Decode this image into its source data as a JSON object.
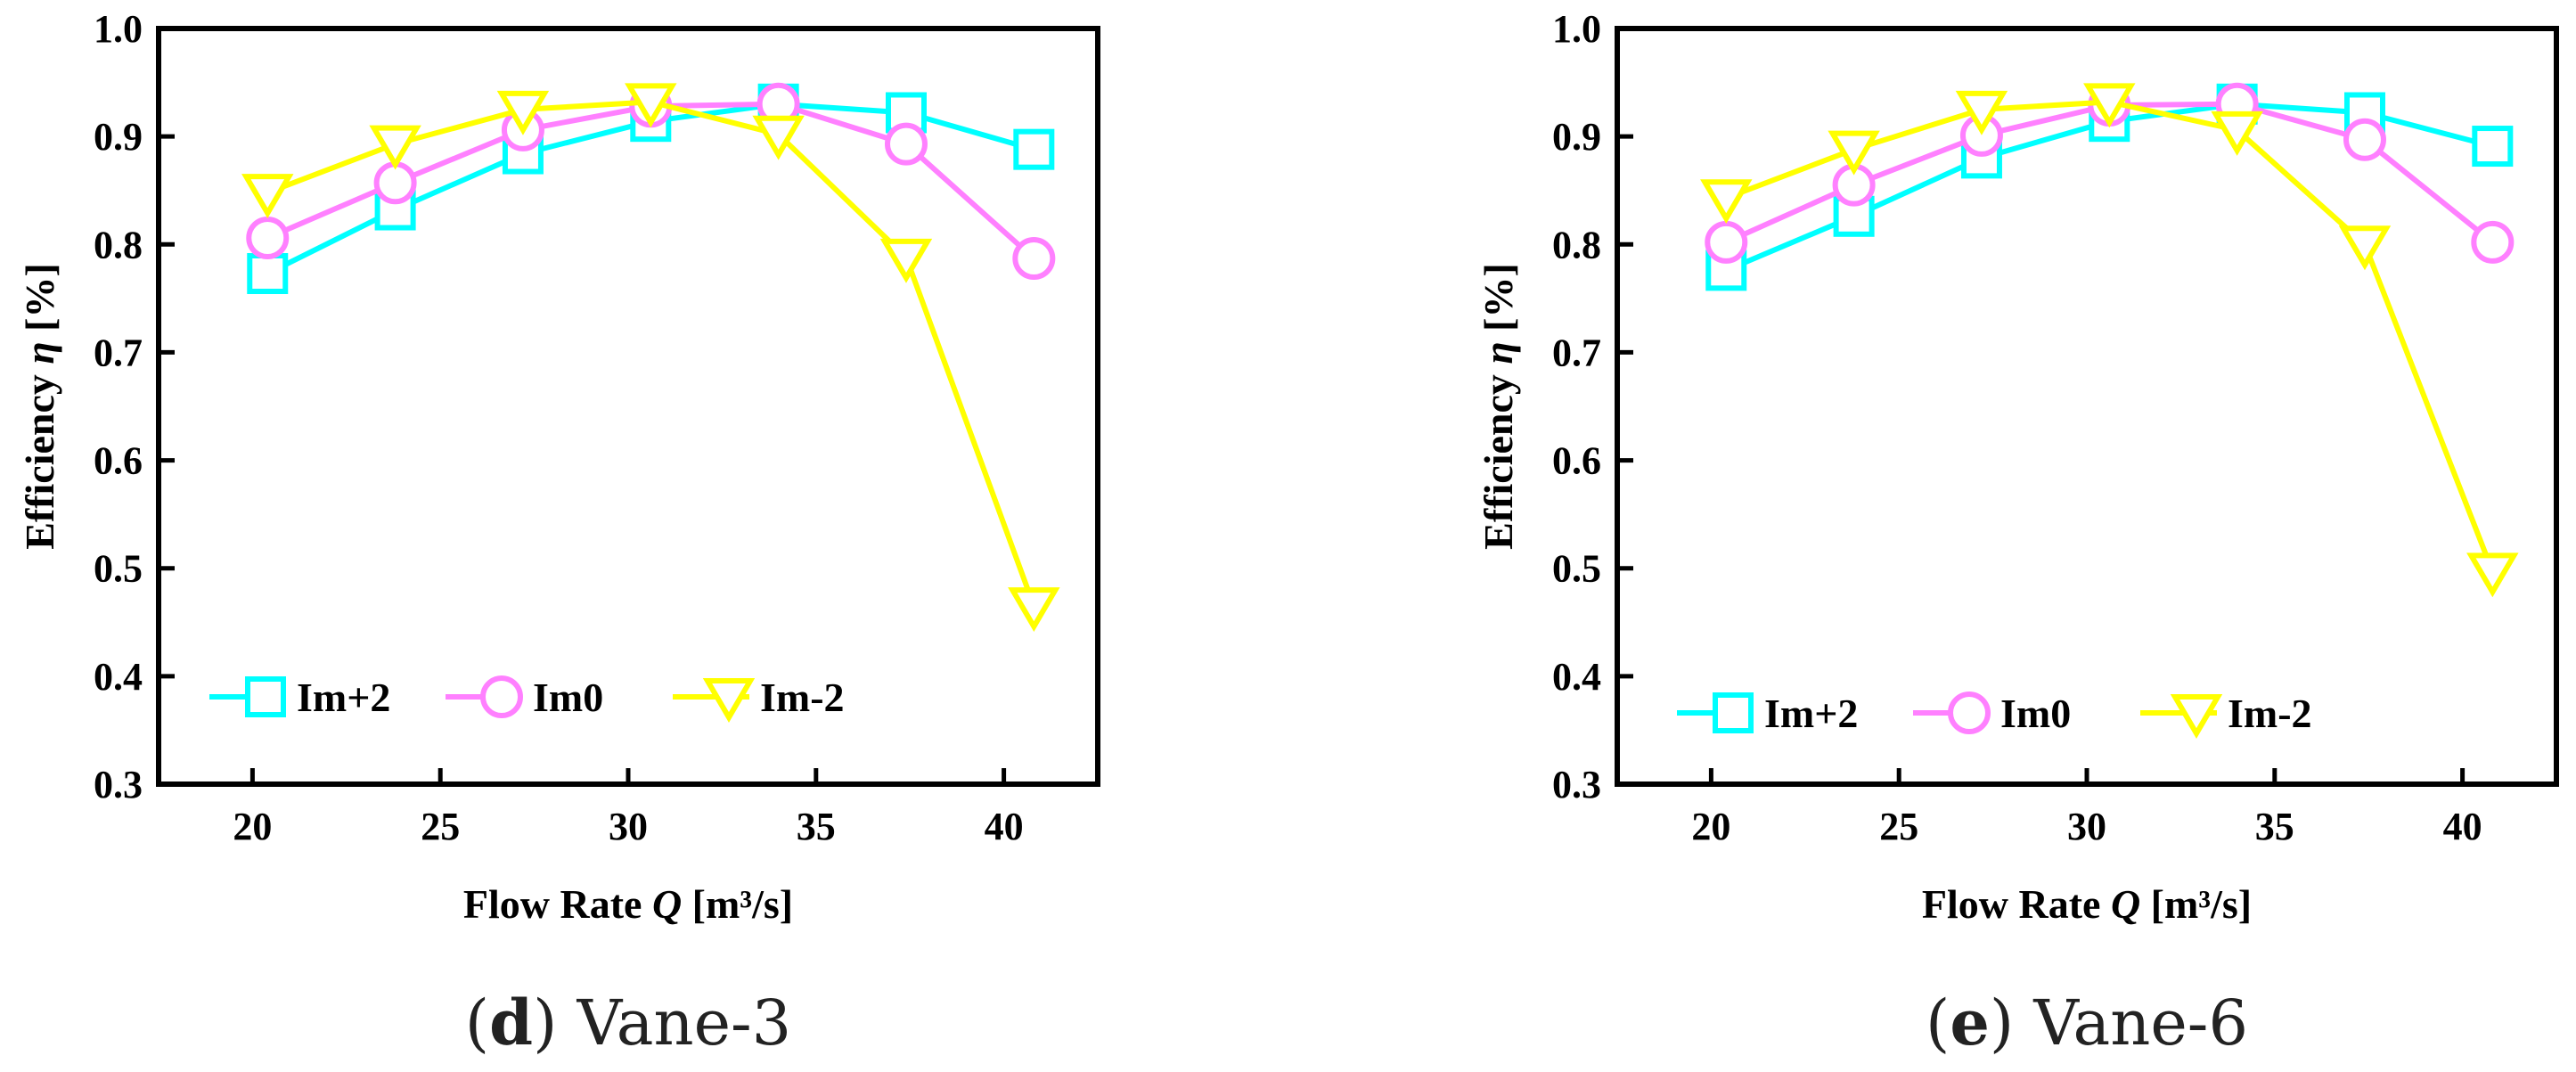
{
  "chart_data": [
    {
      "type": "line",
      "caption_letter": "(d)",
      "caption_label": "Vane-3",
      "xlabel_prefix": "Flow Rate ",
      "xlabel_var": "Q",
      "xlabel_suffix": " [m³/s]",
      "ylabel_prefix": "Efficiency ",
      "ylabel_var": "η",
      "ylabel_suffix": " [%]",
      "xlim": [
        17.5,
        42.5
      ],
      "ylim": [
        0.3,
        1.0
      ],
      "xticks": [
        20,
        25,
        30,
        35,
        40
      ],
      "yticks": [
        0.3,
        0.4,
        0.5,
        0.6,
        0.7,
        0.8,
        0.9,
        1.0
      ],
      "ytick_labels": [
        "0.3",
        "0.4",
        "0.5",
        "0.6",
        "0.7",
        "0.8",
        "0.9",
        "1.0"
      ],
      "legend_position": "lower-left",
      "x": [
        20.4,
        23.8,
        27.2,
        30.6,
        34.0,
        37.4,
        40.8
      ],
      "series": [
        {
          "name": "Im+2",
          "marker": "square",
          "color": "#00ffff",
          "values": [
            0.773,
            0.832,
            0.884,
            0.914,
            0.93,
            0.922,
            0.888
          ]
        },
        {
          "name": "Im0",
          "marker": "circle",
          "color": "#ff80ff",
          "values": [
            0.806,
            0.857,
            0.906,
            0.928,
            0.93,
            0.893,
            0.787
          ]
        },
        {
          "name": "Im-2",
          "marker": "triangle-down",
          "color": "#ffff00",
          "values": [
            0.848,
            0.893,
            0.925,
            0.932,
            0.902,
            0.788,
            0.465
          ]
        }
      ]
    },
    {
      "type": "line",
      "caption_letter": "(e)",
      "caption_label": "Vane-6",
      "xlabel_prefix": "Flow Rate ",
      "xlabel_var": "Q",
      "xlabel_suffix": " [m³/s]",
      "ylabel_prefix": "Efficiency ",
      "ylabel_var": "η",
      "ylabel_suffix": " [%]",
      "xlim": [
        17.5,
        42.5
      ],
      "ylim": [
        0.3,
        1.0
      ],
      "xticks": [
        20,
        25,
        30,
        35,
        40
      ],
      "yticks": [
        0.3,
        0.4,
        0.5,
        0.6,
        0.7,
        0.8,
        0.9,
        1.0
      ],
      "ytick_labels": [
        "0.3",
        "0.4",
        "0.5",
        "0.6",
        "0.7",
        "0.8",
        "0.9",
        "1.0"
      ],
      "legend_position": "lower-left",
      "x": [
        20.4,
        23.8,
        27.2,
        30.6,
        34.0,
        37.4,
        40.8
      ],
      "series": [
        {
          "name": "Im+2",
          "marker": "square",
          "color": "#00ffff",
          "values": [
            0.776,
            0.826,
            0.88,
            0.914,
            0.93,
            0.922,
            0.891
          ]
        },
        {
          "name": "Im0",
          "marker": "circle",
          "color": "#ff80ff",
          "values": [
            0.802,
            0.855,
            0.901,
            0.929,
            0.93,
            0.897,
            0.802
          ]
        },
        {
          "name": "Im-2",
          "marker": "triangle-down",
          "color": "#ffff00",
          "values": [
            0.843,
            0.888,
            0.925,
            0.932,
            0.906,
            0.8,
            0.497
          ]
        }
      ]
    }
  ]
}
